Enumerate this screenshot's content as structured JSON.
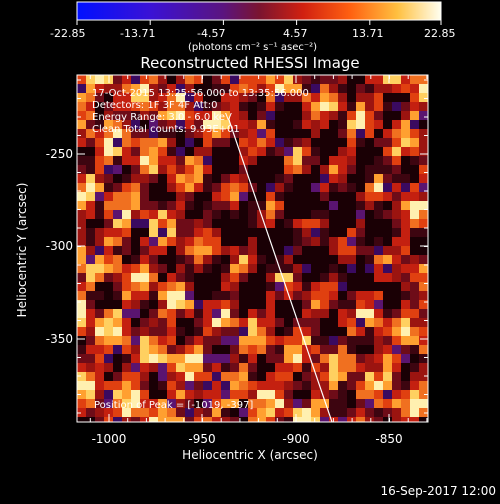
{
  "colorbar": {
    "tick_labels": [
      "-22.85",
      "-13.71",
      "-4.57",
      "4.57",
      "13.71",
      "22.85"
    ],
    "units_label": "(photons cm⁻² s⁻¹ asec⁻²)",
    "range": [
      -22.85,
      22.85
    ]
  },
  "plot": {
    "title": "Reconstructed RHESSI Image",
    "xlabel": "Heliocentric X (arcsec)",
    "ylabel": "Heliocentric Y (arcsec)",
    "x_tick_labels": [
      "-1000",
      "-950",
      "-900",
      "-850"
    ],
    "y_tick_labels": [
      "-250",
      "-300",
      "-350"
    ],
    "x_range": [
      -1015,
      -830
    ],
    "y_range": [
      -395,
      -210
    ]
  },
  "annotations": {
    "time": "17-Oct-2015 13:25:56.000 to 13:35:56.000",
    "detectors": "Detectors: 1F 3F 4F Att:0",
    "energy": "Energy Range: 3.0 - 6.0 keV",
    "clean": "Clean   Total counts: 9.93E+01",
    "peak": "Position of Peak = [-1019, -397]"
  },
  "footer": {
    "timestamp": "16-Sep-2017 12:00"
  }
}
